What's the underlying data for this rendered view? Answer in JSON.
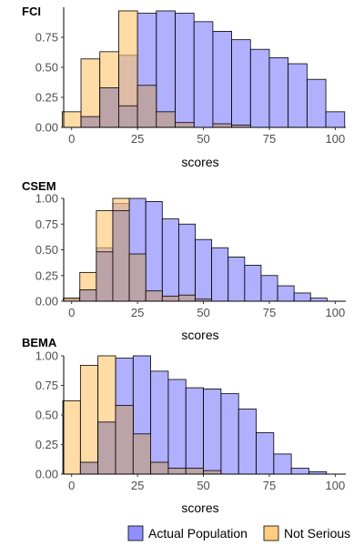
{
  "colors": {
    "actual_population": "#7b7bff",
    "not_serious": "#ffc46a",
    "bar_outline": "#000000"
  },
  "legend": {
    "position": "bottom-right",
    "items": [
      {
        "label": "Actual Population",
        "color": "#7b7bff"
      },
      {
        "label": "Not Serious",
        "color": "#ffc46a"
      }
    ]
  },
  "chart_data": [
    {
      "type": "bar",
      "title": "FCI",
      "xlabel": "scores",
      "ylabel": "",
      "xlim": [
        -3,
        104
      ],
      "ylim": [
        0,
        1
      ],
      "xticks": [
        0,
        25,
        50,
        75,
        100
      ],
      "yticks": [
        0.0,
        0.25,
        0.5,
        0.75
      ],
      "ytick_labels": [
        "0.00",
        "0.25",
        "0.50",
        "0.75"
      ],
      "grid": false,
      "bin_width": 7.14,
      "series": [
        {
          "name": "Actual Population",
          "bin_starts": [
            -3.57,
            3.57,
            10.71,
            17.86,
            25.0,
            32.14,
            39.29,
            46.43,
            53.57,
            60.71,
            67.86,
            75.0,
            82.14,
            89.29,
            96.43
          ],
          "values": [
            0.0,
            0.02,
            0.12,
            0.6,
            0.95,
            0.97,
            0.95,
            0.88,
            0.8,
            0.73,
            0.65,
            0.58,
            0.53,
            0.4,
            0.13
          ]
        },
        {
          "name": "Not Serious",
          "bin_starts": [
            -3.57,
            3.57,
            10.71,
            17.86,
            25.0,
            32.14,
            39.29,
            46.43,
            53.57,
            60.71,
            67.86,
            75.0,
            82.14,
            89.29,
            96.43
          ],
          "values": [
            0.13,
            0.57,
            0.63,
            0.97,
            0.08,
            0.0,
            0.0,
            0.0,
            0.0,
            0.0,
            0.0,
            0.0,
            0.0,
            0.0,
            0.0
          ]
        },
        {
          "name": "Overlap",
          "bin_starts": [
            -3.57,
            3.57,
            10.71,
            17.86,
            25.0,
            32.14,
            39.29,
            46.43,
            53.57,
            60.71,
            67.86,
            75.0,
            82.14,
            89.29,
            96.43
          ],
          "values": [
            0.0,
            0.09,
            0.33,
            0.18,
            0.35,
            0.13,
            0.04,
            0.0,
            0.03,
            0.02,
            0.0,
            0.0,
            0.0,
            0.0,
            0.0
          ]
        }
      ]
    },
    {
      "type": "bar",
      "title": "CSEM",
      "xlabel": "scores",
      "ylabel": "",
      "xlim": [
        -3,
        104
      ],
      "ylim": [
        0,
        1
      ],
      "xticks": [
        0,
        25,
        50,
        75,
        100
      ],
      "yticks": [
        0.0,
        0.25,
        0.5,
        0.75,
        1.0
      ],
      "ytick_labels": [
        "0.00",
        "0.25",
        "0.50",
        "0.75",
        "1.00"
      ],
      "grid": false,
      "bin_width": 6.25,
      "series": [
        {
          "name": "Actual Population",
          "bin_starts": [
            -3.13,
            3.13,
            9.38,
            15.63,
            21.88,
            28.13,
            34.38,
            40.63,
            46.88,
            53.13,
            59.38,
            65.63,
            71.88,
            78.13,
            84.38,
            90.63
          ],
          "values": [
            0.02,
            0.11,
            0.52,
            0.95,
            1.0,
            0.97,
            0.8,
            0.75,
            0.6,
            0.52,
            0.43,
            0.35,
            0.25,
            0.15,
            0.08,
            0.03
          ]
        },
        {
          "name": "Not Serious",
          "bin_starts": [
            -3.13,
            3.13,
            9.38,
            15.63,
            21.88,
            28.13,
            34.38,
            40.63,
            46.88,
            53.13,
            59.38,
            65.63,
            71.88,
            78.13,
            84.38,
            90.63
          ],
          "values": [
            0.03,
            0.28,
            0.88,
            1.0,
            0.0,
            0.0,
            0.0,
            0.0,
            0.0,
            0.0,
            0.0,
            0.0,
            0.0,
            0.0,
            0.0,
            0.0
          ]
        },
        {
          "name": "Overlap",
          "bin_starts": [
            -3.13,
            3.13,
            9.38,
            15.63,
            21.88,
            28.13,
            34.38,
            40.63,
            46.88,
            53.13,
            59.38,
            65.63,
            71.88,
            78.13,
            84.38,
            90.63
          ],
          "values": [
            0.0,
            0.11,
            0.48,
            0.88,
            0.46,
            0.1,
            0.05,
            0.06,
            0.02,
            0.0,
            0.0,
            0.0,
            0.0,
            0.0,
            0.0,
            0.0
          ]
        }
      ]
    },
    {
      "type": "bar",
      "title": "BEMA",
      "xlabel": "scores",
      "ylabel": "",
      "xlim": [
        -3,
        104
      ],
      "ylim": [
        0,
        1
      ],
      "xticks": [
        0,
        25,
        50,
        75,
        100
      ],
      "yticks": [
        0.0,
        0.25,
        0.5,
        0.75,
        1.0
      ],
      "ytick_labels": [
        "0.00",
        "0.25",
        "0.50",
        "0.75",
        "1.00"
      ],
      "grid": false,
      "bin_width": 6.67,
      "series": [
        {
          "name": "Actual Population",
          "bin_starts": [
            -3.33,
            3.33,
            10.0,
            16.67,
            23.33,
            30.0,
            36.67,
            43.33,
            50.0,
            56.67,
            63.33,
            70.0,
            76.67,
            83.33,
            90.0
          ],
          "values": [
            0.0,
            0.1,
            0.43,
            0.98,
            1.0,
            0.87,
            0.8,
            0.73,
            0.72,
            0.68,
            0.55,
            0.35,
            0.17,
            0.05,
            0.02
          ]
        },
        {
          "name": "Not Serious",
          "bin_starts": [
            -3.33,
            3.33,
            10.0,
            16.67,
            23.33,
            30.0,
            36.67,
            43.33,
            50.0,
            56.67,
            63.33,
            70.0,
            76.67,
            83.33,
            90.0
          ],
          "values": [
            0.62,
            0.92,
            1.0,
            0.0,
            0.0,
            0.0,
            0.0,
            0.0,
            0.0,
            0.0,
            0.0,
            0.0,
            0.0,
            0.0,
            0.0
          ]
        },
        {
          "name": "Overlap",
          "bin_starts": [
            -3.33,
            3.33,
            10.0,
            16.67,
            23.33,
            30.0,
            36.67,
            43.33,
            50.0,
            56.67,
            63.33,
            70.0,
            76.67,
            83.33,
            90.0
          ],
          "values": [
            0.0,
            0.1,
            0.44,
            0.58,
            0.34,
            0.1,
            0.05,
            0.05,
            0.03,
            0.0,
            0.0,
            0.0,
            0.0,
            0.0,
            0.0
          ]
        }
      ]
    }
  ]
}
